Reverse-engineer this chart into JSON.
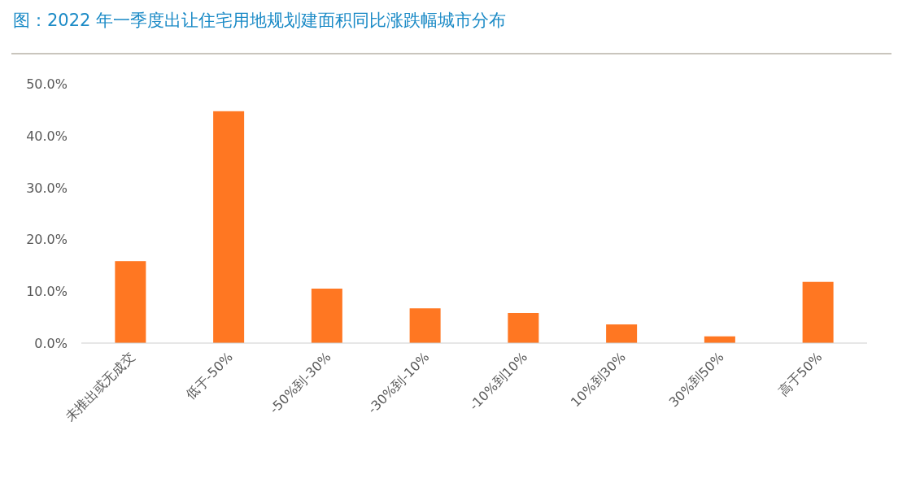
{
  "chart_data": {
    "type": "bar",
    "title": "图：2022 年一季度出让住宅用地规划建面积同比涨跌幅城市分布",
    "categories": [
      "未推出或无成交",
      "低于-50%",
      "-50%到-30%",
      "-30%到-10%",
      "-10%到10%",
      "10%到30%",
      "30%到50%",
      "高于50%"
    ],
    "values": [
      15.8,
      44.7,
      10.5,
      6.7,
      5.8,
      3.6,
      1.3,
      11.8
    ],
    "color": "#ff7722",
    "ylim": [
      0,
      50
    ],
    "yticks": [
      {
        "value": 0,
        "label": "0.0%"
      },
      {
        "value": 10,
        "label": "10.0%"
      },
      {
        "value": 20,
        "label": "20.0%"
      },
      {
        "value": 30,
        "label": "30.0%"
      },
      {
        "value": 40,
        "label": "40.0%"
      },
      {
        "value": 50,
        "label": "50.0%"
      }
    ],
    "grid": false
  }
}
